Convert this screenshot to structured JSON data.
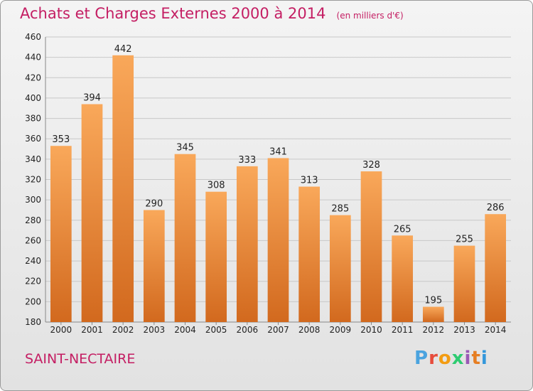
{
  "header": {
    "title": "Achats et Charges Externes 2000 à 2014",
    "unit": "(en milliers d'€)"
  },
  "footer": {
    "place": "SAINT-NECTAIRE",
    "logo_letters": [
      "P",
      "r",
      "o",
      "x",
      "i",
      "t",
      "i"
    ]
  },
  "colors": {
    "title": "#c41e63",
    "bar_top": "#f9a85a",
    "bar_bottom": "#d2691e",
    "logo": [
      "#4aa3df",
      "#e74c3c",
      "#f39c12",
      "#2ecc71",
      "#9b59b6",
      "#e67e22",
      "#3498db"
    ]
  },
  "chart_data": {
    "type": "bar",
    "title": "Achats et Charges Externes 2000 à 2014",
    "subtitle": "(en milliers d'€)",
    "categories": [
      "2000",
      "2001",
      "2002",
      "2003",
      "2004",
      "2005",
      "2006",
      "2007",
      "2008",
      "2009",
      "2010",
      "2011",
      "2012",
      "2013",
      "2014"
    ],
    "values": [
      353,
      394,
      442,
      290,
      345,
      308,
      333,
      341,
      313,
      285,
      328,
      265,
      195,
      255,
      286
    ],
    "ylim": [
      180,
      460
    ],
    "yticks": [
      180,
      200,
      220,
      240,
      260,
      280,
      300,
      320,
      340,
      360,
      380,
      400,
      420,
      440,
      460
    ],
    "grid": true,
    "legend": "none"
  }
}
